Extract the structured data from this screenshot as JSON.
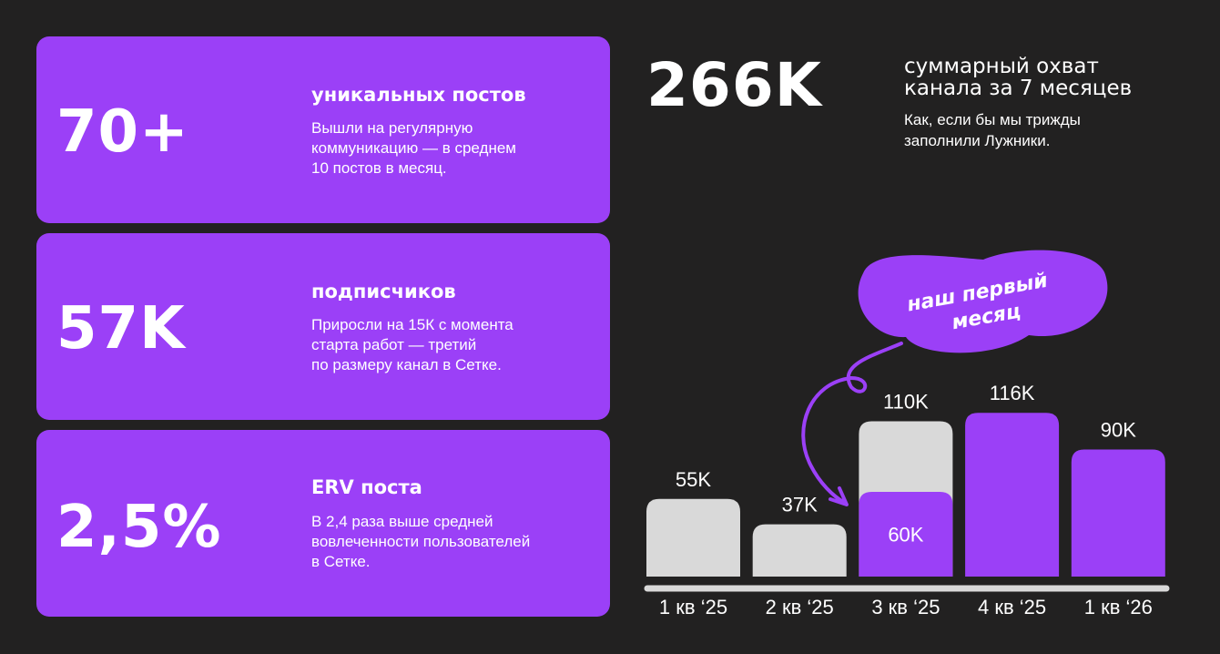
{
  "cards": [
    {
      "number": "70+",
      "title": "уникальных постов",
      "text": [
        "Вышли на регулярную",
        "коммуникацию — в среднем",
        "10 постов в месяц."
      ]
    },
    {
      "number": "57K",
      "title": "подписчиков",
      "text": [
        "Приросли на 15К с момента",
        "старта работ — третий",
        "по размеру канал в Сетке."
      ]
    },
    {
      "number": "2,5%",
      "title": "ERV поста",
      "text": [
        "В 2,4 раза выше средней",
        "вовлеченности пользователей",
        "в Сетке."
      ]
    }
  ],
  "reach": {
    "number": "266K",
    "title": [
      "суммарный охват",
      "канала за 7 месяцев"
    ],
    "text": [
      "Как, если бы мы трижды",
      "заполнили Лужники."
    ]
  },
  "chart_data": {
    "type": "bar",
    "categories": [
      "1 кв ‘25",
      "2 кв ‘25",
      "3 кв ‘25",
      "4 кв ‘25",
      "1 кв ‘26"
    ],
    "values": [
      55000,
      37000,
      110000,
      116000,
      90000
    ],
    "value_labels": [
      "55K",
      "37K",
      "110K",
      "116K",
      "90K"
    ],
    "colors": [
      "#d9d9d9",
      "#d9d9d9",
      "#d9d9d9",
      "#9b40f7",
      "#9b40f7"
    ],
    "highlight": {
      "values": [
        null,
        null,
        60000,
        null,
        null
      ],
      "value_labels": [
        null,
        null,
        "60K",
        null,
        null
      ],
      "color": "#9b40f7"
    },
    "annotation": [
      "наш первый",
      "месяц"
    ],
    "ylim": [
      0,
      120000
    ]
  }
}
